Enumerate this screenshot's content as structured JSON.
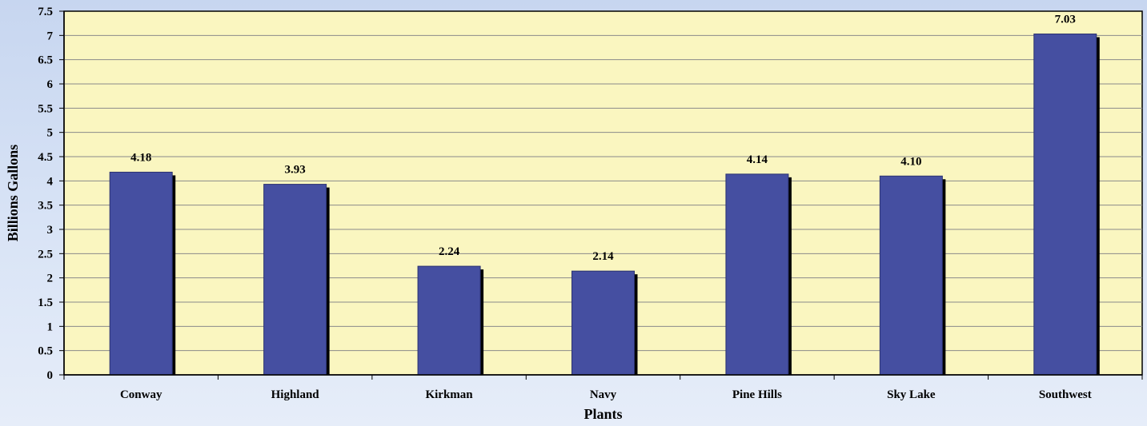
{
  "colors": {
    "plot_background": "#faf6c0",
    "bar_fill": "#454fa1",
    "bar_shadow": "#000000",
    "gridline": "#8a8a8a",
    "axis": "#000000"
  },
  "chart_data": {
    "type": "bar",
    "title": "",
    "xlabel": "Plants",
    "ylabel": "Billions Gallons",
    "categories": [
      "Conway",
      "Highland",
      "Kirkman",
      "Navy",
      "Pine Hills",
      "Sky Lake",
      "Southwest"
    ],
    "values": [
      4.18,
      3.93,
      2.24,
      2.14,
      4.14,
      4.1,
      7.03
    ],
    "value_labels": [
      "4.18",
      "3.93",
      "2.24",
      "2.14",
      "4.14",
      "4.10",
      "7.03"
    ],
    "ylim": [
      0,
      7.5
    ],
    "yticks": [
      "0",
      "0.5",
      "1",
      "1.5",
      "2",
      "2.5",
      "3",
      "3.5",
      "4",
      "4.5",
      "5",
      "5.5",
      "6",
      "6.5",
      "7",
      "7.5"
    ],
    "grid": true,
    "legend": "none"
  }
}
